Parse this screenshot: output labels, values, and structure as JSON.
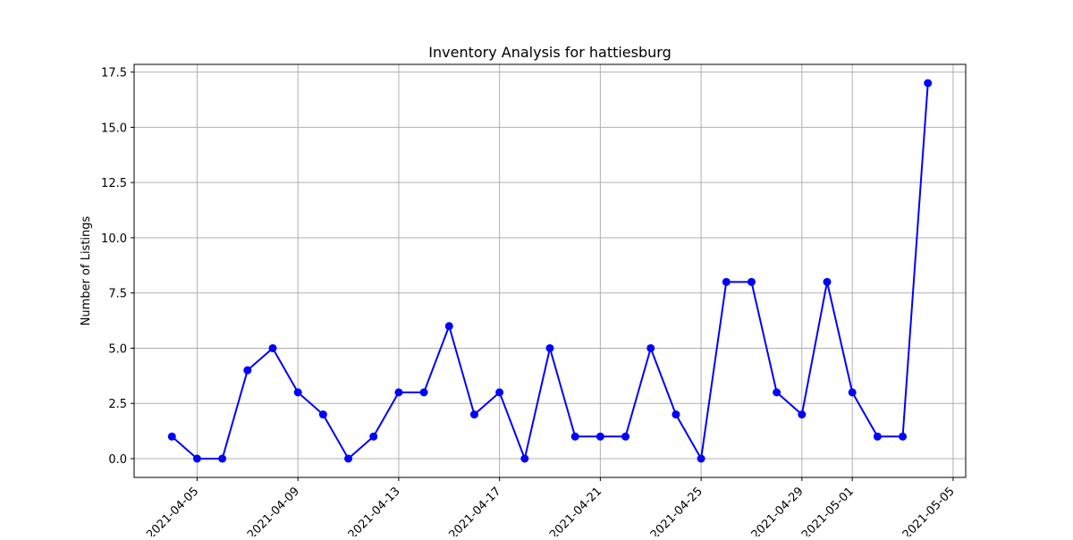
{
  "chart_data": {
    "type": "line",
    "title": "Inventory Analysis for hattiesburg",
    "xlabel": "",
    "ylabel": "Number of Listings",
    "x": [
      "2021-04-04",
      "2021-04-05",
      "2021-04-06",
      "2021-04-07",
      "2021-04-08",
      "2021-04-09",
      "2021-04-10",
      "2021-04-11",
      "2021-04-12",
      "2021-04-13",
      "2021-04-14",
      "2021-04-15",
      "2021-04-16",
      "2021-04-17",
      "2021-04-18",
      "2021-04-19",
      "2021-04-20",
      "2021-04-21",
      "2021-04-22",
      "2021-04-23",
      "2021-04-24",
      "2021-04-25",
      "2021-04-26",
      "2021-04-27",
      "2021-04-28",
      "2021-04-29",
      "2021-04-30",
      "2021-05-01",
      "2021-05-02",
      "2021-05-03",
      "2021-05-04"
    ],
    "series": [
      {
        "values": [
          1,
          0,
          0,
          4,
          5,
          3,
          2,
          0,
          1,
          3,
          3,
          6,
          2,
          3,
          0,
          5,
          1,
          1,
          1,
          5,
          2,
          0,
          8,
          8,
          3,
          2,
          8,
          3,
          1,
          1,
          17
        ]
      }
    ],
    "x_ticks": [
      "2021-04-05",
      "2021-04-09",
      "2021-04-13",
      "2021-04-17",
      "2021-04-21",
      "2021-04-25",
      "2021-04-29",
      "2021-05-01",
      "2021-05-05"
    ],
    "y_ticks": [
      "0.0",
      "2.5",
      "5.0",
      "7.5",
      "10.0",
      "12.5",
      "15.0",
      "17.5"
    ],
    "ylim": [
      -0.85,
      17.85
    ],
    "xlim": [
      "2021-04-02T12:00",
      "2021-05-05T12:00"
    ],
    "grid": true,
    "line_color": "#0000ff",
    "marker": "circle"
  }
}
